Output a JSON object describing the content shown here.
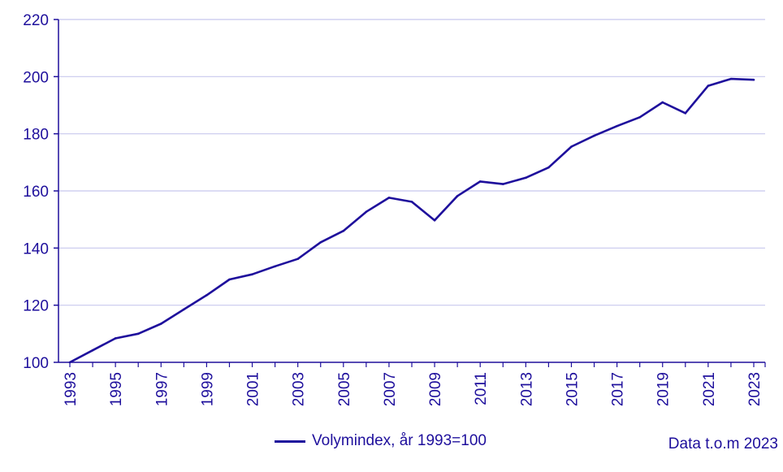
{
  "chart_data": {
    "type": "line",
    "title": "",
    "xlabel": "",
    "ylabel": "",
    "ylim": [
      100,
      220
    ],
    "yticks": [
      100,
      120,
      140,
      160,
      180,
      200,
      220
    ],
    "x": [
      1993,
      1994,
      1995,
      1996,
      1997,
      1998,
      1999,
      2000,
      2001,
      2002,
      2003,
      2004,
      2005,
      2006,
      2007,
      2008,
      2009,
      2010,
      2011,
      2012,
      2013,
      2014,
      2015,
      2016,
      2017,
      2018,
      2019,
      2020,
      2021,
      2022,
      2023
    ],
    "x_tick_labels": [
      "1993",
      "1995",
      "1997",
      "1999",
      "2001",
      "2003",
      "2005",
      "2007",
      "2009",
      "2011",
      "2013",
      "2015",
      "2017",
      "2019",
      "2021",
      "2023"
    ],
    "grid": true,
    "series": [
      {
        "name": "Volymindex, år 1993=100",
        "color": "#1e0f9c",
        "values": [
          100.0,
          104.2,
          108.4,
          110.0,
          113.5,
          118.5,
          123.5,
          129.0,
          130.8,
          133.6,
          136.2,
          142.0,
          146.0,
          152.7,
          157.6,
          156.2,
          149.7,
          158.2,
          163.3,
          162.4,
          164.6,
          168.2,
          175.5,
          179.3,
          182.7,
          185.8,
          191.0,
          187.2,
          196.8,
          199.2,
          198.9
        ]
      }
    ],
    "legend_position": "bottom-center",
    "note": "Data t.o.m 2023"
  }
}
